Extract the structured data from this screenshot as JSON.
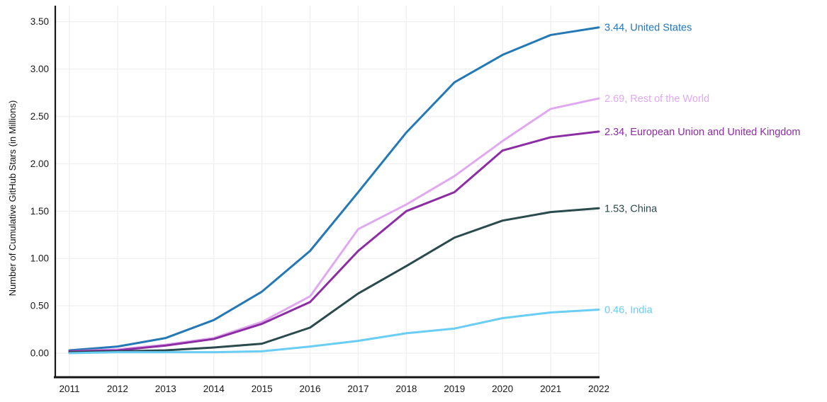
{
  "page": {
    "background_color": "#ffffff"
  },
  "chart_data": {
    "type": "line",
    "title": "",
    "xlabel": "",
    "ylabel": "Number of Cumulative GitHub Stars (in Millions)",
    "x": [
      2011,
      2012,
      2013,
      2014,
      2015,
      2016,
      2017,
      2018,
      2019,
      2020,
      2021,
      2022
    ],
    "x_tick_labels": [
      "2011",
      "2012",
      "2013",
      "2014",
      "2015",
      "2016",
      "2017",
      "2018",
      "2019",
      "2020",
      "2021",
      "2022"
    ],
    "ylim": [
      0,
      3.5
    ],
    "y_ticks": [
      0.0,
      0.5,
      1.0,
      1.5,
      2.0,
      2.5,
      3.0,
      3.5
    ],
    "y_tick_labels": [
      "0.00",
      "0.50",
      "1.00",
      "1.50",
      "2.00",
      "2.50",
      "3.00",
      "3.50"
    ],
    "grid": true,
    "grid_color": "#f0f0f0",
    "axis_color": "#161616",
    "tick_color": "#1a1a1a",
    "legend_position": "right-end-labels",
    "series": [
      {
        "name": "United States",
        "color": "#2478b5",
        "final_value": 3.44,
        "end_label": "3.44, United States",
        "values": [
          0.03,
          0.07,
          0.16,
          0.35,
          0.65,
          1.08,
          1.7,
          2.33,
          2.86,
          3.15,
          3.36,
          3.44
        ]
      },
      {
        "name": "Rest of the World",
        "color": "#e0a9ef",
        "final_value": 2.69,
        "end_label": "2.69, Rest of the World",
        "values": [
          0.02,
          0.04,
          0.09,
          0.16,
          0.33,
          0.6,
          1.31,
          1.57,
          1.87,
          2.24,
          2.58,
          2.69
        ]
      },
      {
        "name": "European Union and United Kingdom",
        "color": "#8d2da4",
        "final_value": 2.34,
        "end_label": "2.34, European Union and United Kingdom",
        "values": [
          0.02,
          0.03,
          0.08,
          0.15,
          0.31,
          0.54,
          1.08,
          1.5,
          1.7,
          2.14,
          2.28,
          2.34
        ]
      },
      {
        "name": "China",
        "color": "#2b4a4d",
        "final_value": 1.53,
        "end_label": "1.53, China",
        "values": [
          0.01,
          0.02,
          0.03,
          0.06,
          0.1,
          0.27,
          0.63,
          0.92,
          1.22,
          1.4,
          1.49,
          1.53
        ]
      },
      {
        "name": "India",
        "color": "#69cdf4",
        "final_value": 0.46,
        "end_label": "0.46, India",
        "values": [
          0.0,
          0.01,
          0.01,
          0.01,
          0.02,
          0.07,
          0.13,
          0.21,
          0.26,
          0.37,
          0.43,
          0.46
        ]
      }
    ]
  }
}
